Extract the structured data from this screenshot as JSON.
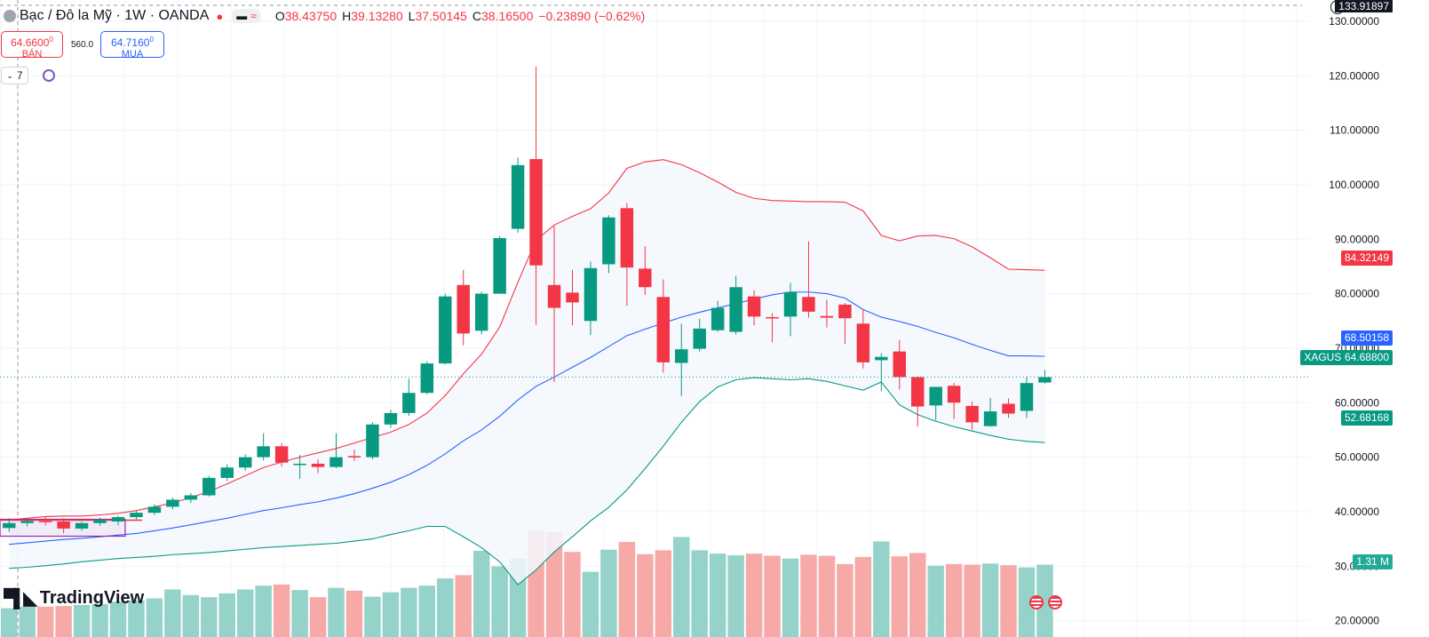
{
  "header": {
    "symbol": "Bạc / Đô la Mỹ · 1W · OANDA",
    "open_key": "O",
    "open": "38.43750",
    "high_key": "H",
    "high": "39.13280",
    "low_key": "L",
    "low": "37.50145",
    "close_key": "C",
    "close": "38.16500",
    "change": "−0.23890 (−0.62%)",
    "pill_a": "▬",
    "pill_b": "≈"
  },
  "trade": {
    "sell_price": "64.6600",
    "sell_sup": "0",
    "sell_label": "BÁN",
    "spread": "560.0",
    "buy_price": "64.7160",
    "buy_sup": "0",
    "buy_label": "MUA"
  },
  "indicator_toggle": "7",
  "brand": {
    "name": "TradingView"
  },
  "top_label": "133.91897",
  "colors": {
    "up": "#089981",
    "down": "#f23645",
    "up_volume": "#95d2c9",
    "down_volume": "#f7a9a8",
    "bb_upper": "#f23645",
    "bb_basis": "#2962ff",
    "bb_lower": "#089981",
    "bb_fill": "#f3f8fd",
    "last_price": "#089981",
    "highlight_box": "#9c27b0"
  },
  "price_tags": {
    "upper": "84.32149",
    "basis": "68.50158",
    "symbol": "XAGUSD",
    "last": "64.68800",
    "lower": "52.68168",
    "volume": "1.31 M"
  },
  "chart_data": {
    "type": "candlestick",
    "y_axis": {
      "min": 17,
      "max": 133.9,
      "ticks": [
        20,
        30,
        40,
        50,
        60,
        70,
        80,
        90,
        100,
        110,
        120,
        130
      ],
      "tick_labels": [
        "20.00000",
        "30.00000",
        "40.00000",
        "50.00000",
        "60.00000",
        "70.00000",
        "80.00000",
        "90.00000",
        "100.00000",
        "110.00000",
        "120.00000",
        "130.00000"
      ]
    },
    "candles": [
      {
        "o": 37.0,
        "h": 38.8,
        "l": 36.3,
        "c": 37.9
      },
      {
        "o": 37.9,
        "h": 38.9,
        "l": 37.3,
        "c": 38.3
      },
      {
        "o": 38.3,
        "h": 39.1,
        "l": 37.5,
        "c": 38.2
      },
      {
        "o": 38.2,
        "h": 38.8,
        "l": 36.0,
        "c": 36.9
      },
      {
        "o": 36.9,
        "h": 38.2,
        "l": 36.5,
        "c": 37.9
      },
      {
        "o": 37.9,
        "h": 38.9,
        "l": 37.4,
        "c": 38.5
      },
      {
        "o": 38.2,
        "h": 39.2,
        "l": 37.5,
        "c": 39.0
      },
      {
        "o": 39.0,
        "h": 40.2,
        "l": 38.6,
        "c": 39.8
      },
      {
        "o": 39.8,
        "h": 41.4,
        "l": 39.4,
        "c": 40.9
      },
      {
        "o": 40.9,
        "h": 42.6,
        "l": 40.4,
        "c": 42.2
      },
      {
        "o": 42.2,
        "h": 43.4,
        "l": 41.6,
        "c": 43.0
      },
      {
        "o": 43.0,
        "h": 46.6,
        "l": 42.8,
        "c": 46.2
      },
      {
        "o": 46.2,
        "h": 48.7,
        "l": 45.6,
        "c": 48.1
      },
      {
        "o": 48.1,
        "h": 50.5,
        "l": 47.5,
        "c": 50.0
      },
      {
        "o": 50.0,
        "h": 54.4,
        "l": 49.4,
        "c": 52.0
      },
      {
        "o": 52.0,
        "h": 52.6,
        "l": 48.3,
        "c": 49.0
      },
      {
        "o": 48.8,
        "h": 50.4,
        "l": 46.0,
        "c": 48.8
      },
      {
        "o": 48.8,
        "h": 49.6,
        "l": 47.1,
        "c": 48.2
      },
      {
        "o": 48.2,
        "h": 54.4,
        "l": 48.0,
        "c": 50.0
      },
      {
        "o": 50.2,
        "h": 51.4,
        "l": 49.3,
        "c": 50.0
      },
      {
        "o": 50.0,
        "h": 56.4,
        "l": 49.6,
        "c": 56.0
      },
      {
        "o": 56.0,
        "h": 58.7,
        "l": 55.4,
        "c": 58.1
      },
      {
        "o": 58.1,
        "h": 64.4,
        "l": 57.6,
        "c": 61.8
      },
      {
        "o": 61.8,
        "h": 67.6,
        "l": 61.5,
        "c": 67.2
      },
      {
        "o": 67.2,
        "h": 80.0,
        "l": 67.0,
        "c": 79.5
      },
      {
        "o": 81.6,
        "h": 84.4,
        "l": 70.5,
        "c": 72.7
      },
      {
        "o": 73.2,
        "h": 80.4,
        "l": 72.5,
        "c": 80.0
      },
      {
        "o": 80.0,
        "h": 90.6,
        "l": 80.0,
        "c": 90.2
      },
      {
        "o": 91.9,
        "h": 105.0,
        "l": 91.2,
        "c": 103.6
      },
      {
        "o": 104.7,
        "h": 121.7,
        "l": 74.3,
        "c": 85.2
      },
      {
        "o": 81.6,
        "h": 92.4,
        "l": 63.8,
        "c": 77.4
      },
      {
        "o": 80.2,
        "h": 84.4,
        "l": 74.2,
        "c": 78.4
      },
      {
        "o": 75.0,
        "h": 85.9,
        "l": 72.4,
        "c": 84.7
      },
      {
        "o": 85.4,
        "h": 94.4,
        "l": 83.8,
        "c": 94.0
      },
      {
        "o": 95.7,
        "h": 96.6,
        "l": 77.8,
        "c": 84.8
      },
      {
        "o": 84.6,
        "h": 88.7,
        "l": 79.8,
        "c": 81.2
      },
      {
        "o": 79.4,
        "h": 82.6,
        "l": 65.5,
        "c": 67.4
      },
      {
        "o": 67.3,
        "h": 74.5,
        "l": 61.2,
        "c": 69.8
      },
      {
        "o": 69.9,
        "h": 75.4,
        "l": 69.4,
        "c": 73.6
      },
      {
        "o": 73.3,
        "h": 78.7,
        "l": 73.0,
        "c": 77.4
      },
      {
        "o": 73.0,
        "h": 83.3,
        "l": 72.5,
        "c": 81.2
      },
      {
        "o": 79.5,
        "h": 80.6,
        "l": 74.2,
        "c": 75.8
      },
      {
        "o": 75.7,
        "h": 76.4,
        "l": 71.1,
        "c": 75.6
      },
      {
        "o": 75.8,
        "h": 82.0,
        "l": 72.2,
        "c": 80.3
      },
      {
        "o": 79.4,
        "h": 89.6,
        "l": 75.6,
        "c": 76.7
      },
      {
        "o": 75.9,
        "h": 78.9,
        "l": 73.8,
        "c": 75.6
      },
      {
        "o": 78.0,
        "h": 78.3,
        "l": 70.8,
        "c": 75.5
      },
      {
        "o": 74.5,
        "h": 77.2,
        "l": 66.3,
        "c": 67.4
      },
      {
        "o": 67.8,
        "h": 69.1,
        "l": 62.1,
        "c": 68.4
      },
      {
        "o": 69.4,
        "h": 71.5,
        "l": 62.4,
        "c": 64.7
      },
      {
        "o": 64.7,
        "h": 64.8,
        "l": 55.6,
        "c": 59.3
      },
      {
        "o": 59.5,
        "h": 62.9,
        "l": 56.8,
        "c": 62.9
      },
      {
        "o": 63.1,
        "h": 63.6,
        "l": 57.0,
        "c": 60.0
      },
      {
        "o": 59.4,
        "h": 60.2,
        "l": 55.0,
        "c": 56.4
      },
      {
        "o": 55.7,
        "h": 60.9,
        "l": 55.6,
        "c": 58.4
      },
      {
        "o": 59.8,
        "h": 60.8,
        "l": 57.2,
        "c": 58.0
      },
      {
        "o": 58.5,
        "h": 64.7,
        "l": 57.2,
        "c": 63.6
      },
      {
        "o": 63.7,
        "h": 66.0,
        "l": 63.5,
        "c": 64.7
      }
    ],
    "volume": [
      0.52,
      0.55,
      0.55,
      0.56,
      0.58,
      0.6,
      0.64,
      0.66,
      0.7,
      0.86,
      0.76,
      0.72,
      0.79,
      0.86,
      0.93,
      0.95,
      0.85,
      0.72,
      0.89,
      0.84,
      0.73,
      0.81,
      0.89,
      0.93,
      1.06,
      1.12,
      1.56,
      1.28,
      1.42,
      1.93,
      1.9,
      1.54,
      1.18,
      1.58,
      1.72,
      1.5,
      1.57,
      1.81,
      1.57,
      1.51,
      1.48,
      1.51,
      1.47,
      1.42,
      1.49,
      1.47,
      1.32,
      1.45,
      1.73,
      1.46,
      1.52,
      1.29,
      1.32,
      1.31,
      1.33,
      1.3,
      1.26,
      1.31
    ],
    "bollinger": {
      "upper": [
        38.5,
        38.8,
        39.1,
        39.2,
        39.2,
        39.4,
        39.7,
        40.2,
        40.9,
        41.6,
        42.6,
        43.7,
        45.1,
        46.6,
        48.1,
        49.1,
        50.0,
        50.8,
        51.6,
        52.6,
        53.6,
        54.6,
        56.0,
        58.1,
        61.3,
        65.3,
        68.9,
        73.9,
        82.1,
        89.8,
        92.6,
        94.2,
        95.6,
        98.5,
        103.0,
        104.2,
        104.6,
        103.7,
        102.2,
        100.5,
        98.6,
        97.5,
        97.1,
        97.0,
        96.9,
        96.9,
        96.8,
        95.2,
        90.7,
        89.7,
        90.6,
        90.7,
        90.1,
        88.6,
        86.6,
        84.5,
        84.4,
        84.3
      ],
      "basis": [
        34.0,
        34.3,
        34.6,
        34.9,
        35.1,
        35.4,
        35.7,
        36.0,
        36.5,
        37.0,
        37.6,
        38.2,
        38.8,
        39.5,
        40.2,
        40.7,
        41.3,
        41.8,
        42.5,
        43.3,
        44.3,
        45.4,
        46.8,
        48.5,
        50.6,
        53.0,
        55.0,
        57.5,
        60.5,
        63.0,
        64.7,
        66.5,
        68.3,
        70.3,
        72.3,
        73.5,
        74.6,
        75.7,
        76.6,
        77.4,
        78.2,
        79.0,
        79.8,
        80.3,
        80.3,
        80.0,
        79.2,
        77.1,
        75.7,
        74.9,
        74.0,
        72.9,
        71.9,
        70.7,
        69.6,
        68.6,
        68.6,
        68.5
      ],
      "lower": [
        29.6,
        29.8,
        30.1,
        30.4,
        30.8,
        31.1,
        31.4,
        31.6,
        31.8,
        32.1,
        32.3,
        32.5,
        32.8,
        33.1,
        33.4,
        33.6,
        33.8,
        34.0,
        34.2,
        34.6,
        35.0,
        35.8,
        36.5,
        37.3,
        37.3,
        35.4,
        33.4,
        30.8,
        26.6,
        29.3,
        32.6,
        35.4,
        38.3,
        40.8,
        44.0,
        47.9,
        52.0,
        56.4,
        60.2,
        62.9,
        64.2,
        64.6,
        64.4,
        64.2,
        64.4,
        63.9,
        63.1,
        62.3,
        63.8,
        59.6,
        57.8,
        56.6,
        55.6,
        54.8,
        54.0,
        53.3,
        52.9,
        52.7
      ]
    }
  }
}
